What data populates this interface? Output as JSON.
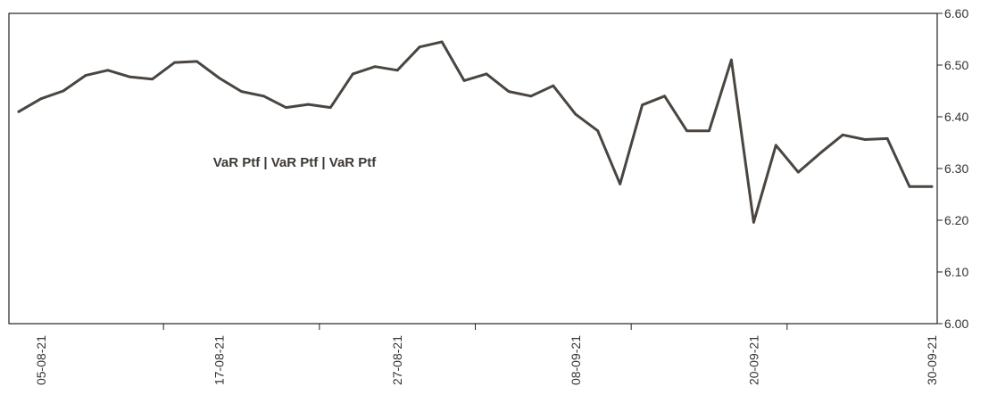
{
  "chart_data": {
    "type": "line",
    "title": "",
    "xlabel": "",
    "ylabel": "",
    "ylim": [
      6.0,
      6.6
    ],
    "y_ticks": [
      "6.00",
      "6.10",
      "6.20",
      "6.30",
      "6.40",
      "6.50",
      "6.60"
    ],
    "y_axis_side": "right",
    "grid": false,
    "series_label": "VaR Ptf | VaR Ptf | VaR Ptf",
    "x_tick_labels": [
      {
        "label": "05-08-21",
        "index": 1
      },
      {
        "label": "17-08-21",
        "index": 9
      },
      {
        "label": "27-08-21",
        "index": 17
      },
      {
        "label": "08-09-21",
        "index": 25
      },
      {
        "label": "20-09-21",
        "index": 33
      },
      {
        "label": "30-09-21",
        "index": 41
      }
    ],
    "series": [
      {
        "color": "#4a4540",
        "values": [
          6.41,
          6.435,
          6.45,
          6.48,
          6.49,
          6.477,
          6.473,
          6.505,
          6.507,
          6.475,
          6.449,
          6.44,
          6.418,
          6.424,
          6.418,
          6.483,
          6.497,
          6.49,
          6.535,
          6.545,
          6.47,
          6.483,
          6.449,
          6.44,
          6.46,
          6.405,
          6.373,
          6.27,
          6.423,
          6.44,
          6.373,
          6.373,
          6.51,
          6.196,
          6.345,
          6.293,
          6.33,
          6.365,
          6.356,
          6.358,
          6.265,
          6.265
        ]
      }
    ]
  }
}
